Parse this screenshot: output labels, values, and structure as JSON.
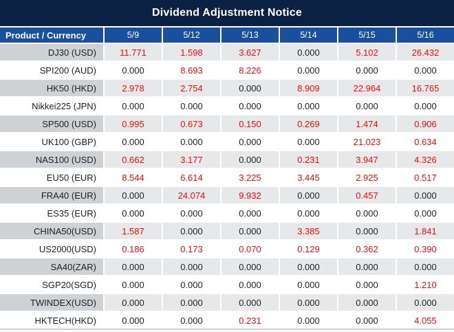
{
  "title": "Dividend Adjustment Notice",
  "colors": {
    "title_bg": "#0b2143",
    "header_bg": "#1b4e9c",
    "header_text": "#ffffff",
    "row_label_bg": "#ced2d5",
    "row_value_bg": "#e6e8e9",
    "nonzero_value_text": "#f20d0d",
    "zero_value_text": "#1f1f1f"
  },
  "table": {
    "header": [
      "Product / Currency",
      "5/9",
      "5/12",
      "5/13",
      "5/14",
      "5/15",
      "5/16"
    ],
    "rows": [
      {
        "product": "DJ30 (USD)",
        "values": [
          "11.771",
          "1.598",
          "3.627",
          "0.000",
          "5.102",
          "26.432"
        ]
      },
      {
        "product": "SPI200 (AUD)",
        "values": [
          "0.000",
          "8.693",
          "8.226",
          "0.000",
          "0.000",
          "0.000"
        ]
      },
      {
        "product": "HK50 (HKD)",
        "values": [
          "2.978",
          "2.754",
          "0.000",
          "8.909",
          "22.964",
          "16.765"
        ]
      },
      {
        "product": "Nikkei225 (JPN)",
        "values": [
          "0.000",
          "0.000",
          "0.000",
          "0.000",
          "0.000",
          "0.000"
        ]
      },
      {
        "product": "SP500 (USD)",
        "values": [
          "0.995",
          "0.673",
          "0.150",
          "0.269",
          "1.474",
          "0.906"
        ]
      },
      {
        "product": "UK100 (GBP)",
        "values": [
          "0.000",
          "0.000",
          "0.000",
          "0.000",
          "21.023",
          "0.634"
        ]
      },
      {
        "product": "NAS100 (USD)",
        "values": [
          "0.662",
          "3.177",
          "0.000",
          "0.231",
          "3.947",
          "4.326"
        ]
      },
      {
        "product": "EU50 (EUR)",
        "values": [
          "8.544",
          "6.614",
          "3.225",
          "3.445",
          "2.925",
          "0.517"
        ]
      },
      {
        "product": "FRA40 (EUR)",
        "values": [
          "0.000",
          "24.074",
          "9.932",
          "0.000",
          "0.457",
          "0.000"
        ]
      },
      {
        "product": "ES35 (EUR)",
        "values": [
          "0.000",
          "0.000",
          "0.000",
          "0.000",
          "0.000",
          "0.000"
        ]
      },
      {
        "product": "CHINA50(USD)",
        "values": [
          "1.587",
          "0.000",
          "0.000",
          "3.385",
          "0.000",
          "1.841"
        ]
      },
      {
        "product": "US2000(USD)",
        "values": [
          "0.186",
          "0.173",
          "0.070",
          "0.129",
          "0.362",
          "0.390"
        ]
      },
      {
        "product": "SA40(ZAR)",
        "values": [
          "0.000",
          "0.000",
          "0.000",
          "0.000",
          "0.000",
          "0.000"
        ]
      },
      {
        "product": "SGP20(SGD)",
        "values": [
          "0.000",
          "0.000",
          "0.000",
          "0.000",
          "0.000",
          "1.210"
        ]
      },
      {
        "product": "TWINDEX(USD)",
        "values": [
          "0.000",
          "0.000",
          "0.000",
          "0.000",
          "0.000",
          "0.000"
        ]
      },
      {
        "product": "HKTECH(HKD)",
        "values": [
          "0.000",
          "0.000",
          "0.231",
          "0.000",
          "0.000",
          "4.055"
        ]
      }
    ]
  },
  "chart_data": {
    "type": "table",
    "title": "Dividend Adjustment Notice",
    "categories": [
      "5/9",
      "5/12",
      "5/13",
      "5/14",
      "5/15",
      "5/16"
    ],
    "series": [
      {
        "name": "DJ30 (USD)",
        "values": [
          11.771,
          1.598,
          3.627,
          0.0,
          5.102,
          26.432
        ]
      },
      {
        "name": "SPI200 (AUD)",
        "values": [
          0.0,
          8.693,
          8.226,
          0.0,
          0.0,
          0.0
        ]
      },
      {
        "name": "HK50 (HKD)",
        "values": [
          2.978,
          2.754,
          0.0,
          8.909,
          22.964,
          16.765
        ]
      },
      {
        "name": "Nikkei225 (JPN)",
        "values": [
          0.0,
          0.0,
          0.0,
          0.0,
          0.0,
          0.0
        ]
      },
      {
        "name": "SP500 (USD)",
        "values": [
          0.995,
          0.673,
          0.15,
          0.269,
          1.474,
          0.906
        ]
      },
      {
        "name": "UK100 (GBP)",
        "values": [
          0.0,
          0.0,
          0.0,
          0.0,
          21.023,
          0.634
        ]
      },
      {
        "name": "NAS100 (USD)",
        "values": [
          0.662,
          3.177,
          0.0,
          0.231,
          3.947,
          4.326
        ]
      },
      {
        "name": "EU50 (EUR)",
        "values": [
          8.544,
          6.614,
          3.225,
          3.445,
          2.925,
          0.517
        ]
      },
      {
        "name": "FRA40 (EUR)",
        "values": [
          0.0,
          24.074,
          9.932,
          0.0,
          0.457,
          0.0
        ]
      },
      {
        "name": "ES35 (EUR)",
        "values": [
          0.0,
          0.0,
          0.0,
          0.0,
          0.0,
          0.0
        ]
      },
      {
        "name": "CHINA50(USD)",
        "values": [
          1.587,
          0.0,
          0.0,
          3.385,
          0.0,
          1.841
        ]
      },
      {
        "name": "US2000(USD)",
        "values": [
          0.186,
          0.173,
          0.07,
          0.129,
          0.362,
          0.39
        ]
      },
      {
        "name": "SA40(ZAR)",
        "values": [
          0.0,
          0.0,
          0.0,
          0.0,
          0.0,
          0.0
        ]
      },
      {
        "name": "SGP20(SGD)",
        "values": [
          0.0,
          0.0,
          0.0,
          0.0,
          0.0,
          1.21
        ]
      },
      {
        "name": "TWINDEX(USD)",
        "values": [
          0.0,
          0.0,
          0.0,
          0.0,
          0.0,
          0.0
        ]
      },
      {
        "name": "HKTECH(HKD)",
        "values": [
          0.0,
          0.0,
          0.231,
          0.0,
          0.0,
          4.055
        ]
      }
    ]
  }
}
